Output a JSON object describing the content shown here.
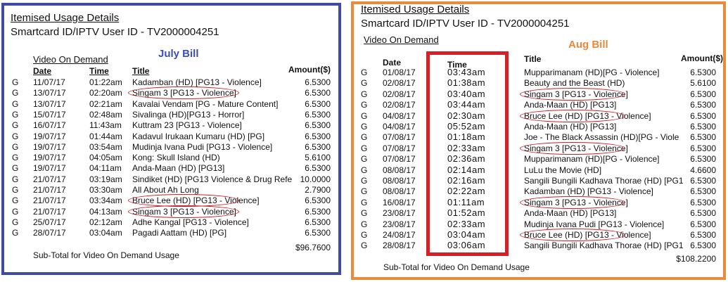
{
  "july": {
    "header_title": "Itemised Usage Details",
    "smartcard": "Smartcard ID/IPTV User ID - TV2000004251",
    "section": "Video On Demand",
    "label": "July Bill",
    "columns": [
      "Date",
      "Time",
      "Title",
      "Amount($)"
    ],
    "rows": [
      [
        "G",
        "11/07/17",
        "01:22am",
        "Kadamban (HD) [PG13 - Violence]",
        "6.5300"
      ],
      [
        "G",
        "13/07/17",
        "02:20am",
        "Singam 3 [PG13 - Violence]",
        "6.5300"
      ],
      [
        "G",
        "13/07/17",
        "02:21am",
        "Kavalai Vendam [PG - Mature Content]",
        "6.5300"
      ],
      [
        "G",
        "15/07/17",
        "02:48am",
        "Sivalinga (HD)[PG13 - Horror]",
        "6.5300"
      ],
      [
        "G",
        "16/07/17",
        "11:43am",
        "Kuttram 23 [PG13 - Violence]",
        "6.5300"
      ],
      [
        "G",
        "19/07/17",
        "01:44am",
        "Kadavul Irukaan Kumaru (HD) [PG]",
        "6.5300"
      ],
      [
        "G",
        "19/07/17",
        "03:54am",
        "Mudinja Ivana Pudi [PG13 - Violence]",
        "6.5300"
      ],
      [
        "G",
        "19/07/17",
        "04:05am",
        "Kong: Skull Island (HD)",
        "5.6100"
      ],
      [
        "G",
        "19/07/17",
        "04:11am",
        "Anda-Maan (HD) [PG13]",
        "6.5300"
      ],
      [
        "G",
        "21/07/17",
        "03:19am",
        "Sindiket (HD) [PG13 Violence & Drug Refe",
        "10.0000"
      ],
      [
        "G",
        "21/07/17",
        "03:30am",
        "All About Ah Long",
        "2.7900"
      ],
      [
        "G",
        "21/07/17",
        "03:34am",
        "Bruce Lee (HD) [PG13 - Violence]",
        "6.5300"
      ],
      [
        "G",
        "21/07/17",
        "04:13am",
        "Singam 3 [PG13 - Violence]",
        "6.5300"
      ],
      [
        "G",
        "25/07/17",
        "02:12am",
        "Adhe Kangal [PG13 - Violence]",
        "6.5300"
      ],
      [
        "G",
        "28/07/17",
        "03:04am",
        "Pagadi Aattam (HD) [PG]",
        "6.5300"
      ]
    ],
    "subtotal_label": "Sub-Total for Video On Demand Usage",
    "subtotal": "$96.7600"
  },
  "aug": {
    "header_title": "Itemised Usage Details",
    "smartcard": "Smartcard ID/IPTV User ID - TV2000004251",
    "section": "Video On Demand",
    "label": "Aug Bill",
    "columns": [
      "Date",
      "Time",
      "Title",
      "Amount($)"
    ],
    "rows": [
      [
        "G",
        "01/08/17",
        "03:43am",
        "Mupparimanam (HD)[PG - Violence]",
        "6.5300"
      ],
      [
        "G",
        "02/08/17",
        "01:38am",
        "Beauty and the Beast (HD)",
        "5.6100"
      ],
      [
        "G",
        "02/08/17",
        "03:40am",
        "Singam 3 [PG13 - Violence]",
        "6.5300"
      ],
      [
        "G",
        "02/08/17",
        "03:44am",
        "Anda-Maan (HD) [PG13]",
        "6.5300"
      ],
      [
        "G",
        "04/08/17",
        "02:30am",
        "Bruce Lee (HD) [PG13 - Violence]",
        "6.5300"
      ],
      [
        "G",
        "04/08/17",
        "05:52am",
        "Anda-Maan (HD) [PG13]",
        "6.5300"
      ],
      [
        "G",
        "07/08/17",
        "01:18am",
        "Joe - The Black Assassin (HD)[PG - Viole",
        "6.5300"
      ],
      [
        "G",
        "07/08/17",
        "02:33am",
        "Singam 3 [PG13 - Violence]",
        "6.5300"
      ],
      [
        "G",
        "07/08/17",
        "02:36am",
        "Mupparimanam (HD)[PG - Violence]",
        "6.5300"
      ],
      [
        "G",
        "08/08/17",
        "02:14am",
        "LuLu the Movie (HD]",
        "4.6600"
      ],
      [
        "G",
        "08/08/17",
        "02:16am",
        "Sangili Bungili Kadhava Thorae (HD) [PG1",
        "6.5300"
      ],
      [
        "G",
        "08/08/17",
        "02:22am",
        "Kadamban (HD) [PG13 - Violence]",
        "6.5300"
      ],
      [
        "G",
        "16/08/17",
        "01:11am",
        "Singam 3 [PG13 - Violence]",
        "6.5300"
      ],
      [
        "G",
        "23/08/17",
        "01:52am",
        "Anda-Maan (HD) [PG13]",
        "6.5300"
      ],
      [
        "G",
        "23/08/17",
        "02:33am",
        "Mudinja Ivana Pudi [PG13 - Violence]",
        "6.5300"
      ],
      [
        "G",
        "24/08/17",
        "03:04am",
        "Bruce Lee (HD) [PG13 - Violence]",
        "6.5300"
      ],
      [
        "G",
        "28/08/17",
        "03:06am",
        "Sangili Bungili Kadhava Thorae (HD) [PG1",
        "6.5300"
      ]
    ],
    "subtotal_label": "Sub-Total for Video On Demand Usage",
    "subtotal": "$108.2200"
  }
}
